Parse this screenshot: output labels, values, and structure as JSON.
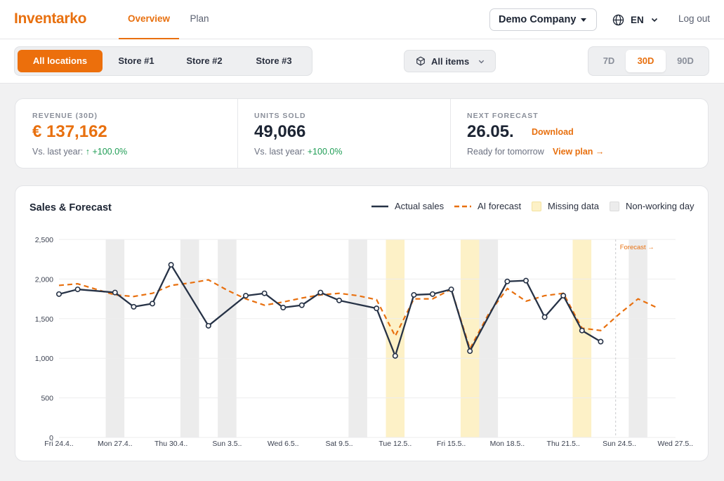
{
  "header": {
    "brand": "Inventarko",
    "tabs": [
      "Overview",
      "Plan"
    ],
    "company": "Demo Company",
    "language": "EN",
    "logout": "Log out"
  },
  "filters": {
    "locations": [
      "All locations",
      "Store #1",
      "Store #2",
      "Store #3"
    ],
    "items_label": "All items",
    "ranges": [
      "7D",
      "30D",
      "90D"
    ],
    "active_range": "30D"
  },
  "kpis": {
    "revenue": {
      "label": "REVENUE (30D)",
      "value": "€ 137,162",
      "sub_prefix": "Vs. last year:",
      "change": "↑ +100.0%"
    },
    "units": {
      "label": "UNITS SOLD",
      "value": "49,066",
      "sub_prefix": "Vs. last year:",
      "change": "+100.0%"
    },
    "forecast": {
      "label": "NEXT FORECAST",
      "value": "26.05.",
      "download": "Download",
      "sub": "Ready for tomorrow",
      "view_plan": "View plan →"
    }
  },
  "chart": {
    "title": "Sales & Forecast",
    "legend": {
      "actual": "Actual sales",
      "forecast": "AI forecast",
      "missing": "Missing data",
      "nonworking": "Non-working day"
    },
    "forecast_marker": "Forecast →"
  },
  "colors": {
    "accent": "#e8700f",
    "actual_line": "#263246",
    "missing": "#fdf1c7",
    "nonworking": "#ececec",
    "positive": "#1f9d55"
  },
  "chart_data": {
    "type": "line",
    "title": "Sales & Forecast",
    "x": [
      "24.4.",
      "25.4.",
      "26.4.",
      "27.4.",
      "28.4.",
      "29.4.",
      "30.4.",
      "1.5.",
      "2.5.",
      "3.5.",
      "4.5.",
      "5.5.",
      "6.5.",
      "7.5.",
      "8.5.",
      "9.5.",
      "10.5.",
      "11.5.",
      "12.5.",
      "13.5.",
      "14.5.",
      "15.5.",
      "16.5.",
      "17.5.",
      "18.5.",
      "19.5.",
      "20.5.",
      "21.5.",
      "22.5.",
      "23.5.",
      "24.5.",
      "25.5.",
      "26.5.",
      "27.5."
    ],
    "x_tick_labels": [
      "Fri 24.4..",
      "Mon 27.4..",
      "Thu 30.4..",
      "Sun 3.5..",
      "Wed 6.5..",
      "Sat 9.5..",
      "Tue 12.5..",
      "Fri 15.5..",
      "Mon 18.5..",
      "Thu 21.5..",
      "Sun 24.5..",
      "Wed 27.5.."
    ],
    "y_ticks": [
      0,
      500,
      1000,
      1500,
      2000,
      2500
    ],
    "y_tick_labels": [
      "0",
      "500",
      "1,000",
      "1,500",
      "2,000",
      "2,500"
    ],
    "ylim": [
      0,
      2500
    ],
    "series": [
      {
        "name": "Actual sales",
        "values": [
          1810,
          1870,
          null,
          1830,
          1650,
          1690,
          2180,
          null,
          1410,
          null,
          1790,
          1820,
          1640,
          1670,
          1830,
          1730,
          null,
          1630,
          1030,
          1800,
          1810,
          1870,
          1090,
          null,
          1970,
          1980,
          1520,
          1790,
          1350,
          1210,
          null,
          null,
          null,
          null
        ]
      },
      {
        "name": "AI forecast",
        "values": [
          1920,
          1940,
          1870,
          1800,
          1780,
          1820,
          1920,
          1950,
          1990,
          1860,
          1750,
          1670,
          1710,
          1760,
          1800,
          1820,
          1790,
          1740,
          1280,
          1750,
          1750,
          1870,
          1120,
          1560,
          1880,
          1720,
          1790,
          1820,
          1380,
          1350,
          1560,
          1750,
          1640,
          null
        ]
      }
    ],
    "missing_data_days": [
      "12.5.",
      "16.5.",
      "22.5."
    ],
    "non_working_days": [
      "27.4.",
      "1.5.",
      "3.5.",
      "10.5.",
      "17.5.",
      "25.5."
    ],
    "forecast_start": "24.5.",
    "grid": true,
    "legend_position": "top-right"
  }
}
